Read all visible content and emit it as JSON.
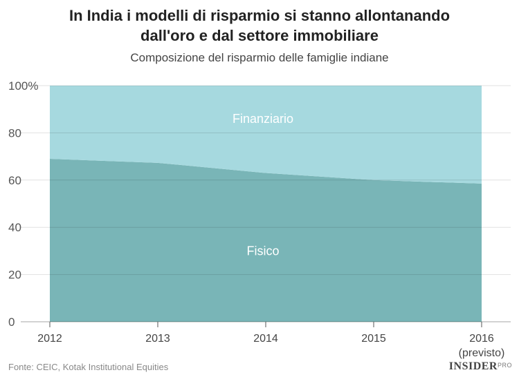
{
  "chart_data": {
    "type": "area",
    "stacked": true,
    "title_line1": "In India i modelli di risparmio si stanno allontanando",
    "title_line2": "dall'oro e dal settore immobiliare",
    "subtitle": "Composizione del risparmio delle famiglie indiane",
    "x": [
      "2012",
      "2013",
      "2014",
      "2015",
      "2016"
    ],
    "x_tick_sublabels": [
      "",
      "",
      "",
      "",
      "(previsto)"
    ],
    "series": [
      {
        "name": "Fisico",
        "values": [
          69,
          67.3,
          63,
          60,
          58.5
        ],
        "color": "#79b5b7"
      },
      {
        "name": "Finanziario",
        "values": [
          31,
          32.7,
          37,
          40,
          41.5
        ],
        "color": "#a6d9df"
      }
    ],
    "ylim": [
      0,
      100
    ],
    "yticks": [
      "0",
      "20",
      "40",
      "60",
      "80",
      "100%"
    ],
    "ytick_values": [
      0,
      20,
      40,
      60,
      80,
      100
    ],
    "grid": true,
    "xlabel": "",
    "ylabel": ""
  },
  "footer": {
    "source": "Fonte: CEIC, Kotak Institutional Equities",
    "brand": "INSIDER",
    "brand_sup": "PRO"
  }
}
